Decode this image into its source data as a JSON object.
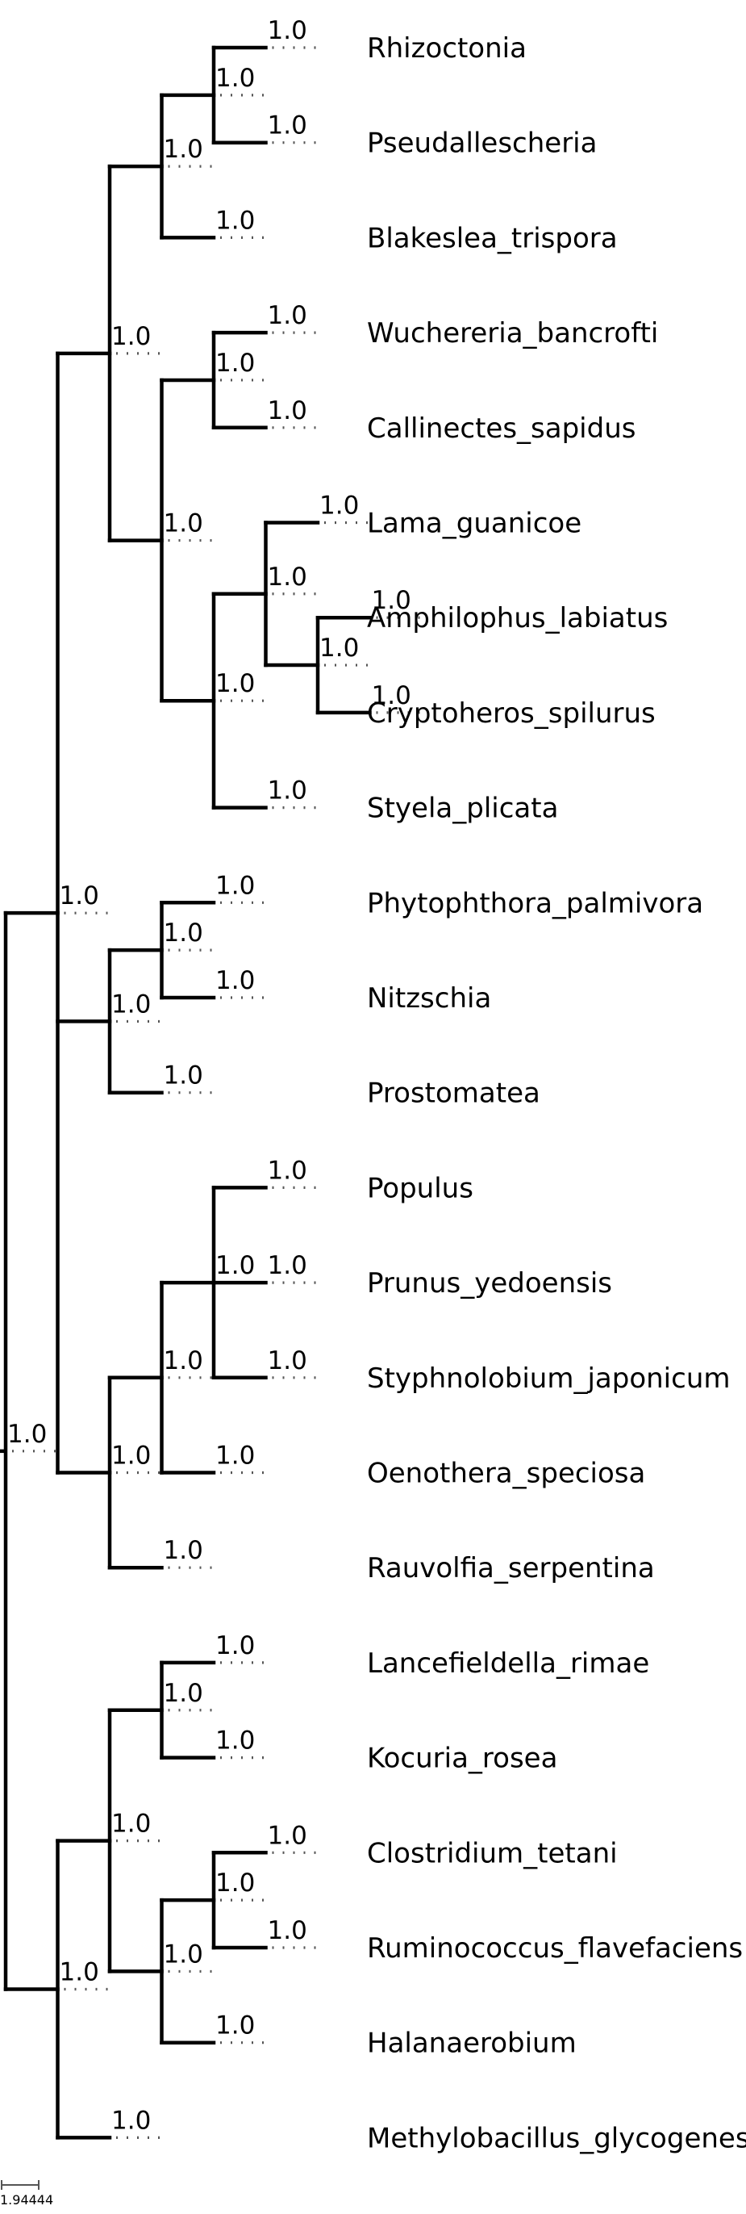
{
  "tree": {
    "support": "1.0",
    "children": [
      {
        "support": "1.0",
        "children": [
          {
            "support": "1.0",
            "children": [
              {
                "support": "1.0",
                "children": [
                  {
                    "support": "1.0",
                    "children": [
                      {
                        "name": "Rhizoctonia",
                        "support": "1.0"
                      },
                      {
                        "name": "Pseudallescheria",
                        "support": "1.0"
                      }
                    ]
                  },
                  {
                    "name": "Blakeslea_trispora",
                    "support": "1.0"
                  }
                ]
              },
              {
                "support": "1.0",
                "children": [
                  {
                    "support": "1.0",
                    "children": [
                      {
                        "name": "Wuchereria_bancrofti",
                        "support": "1.0"
                      },
                      {
                        "name": "Callinectes_sapidus",
                        "support": "1.0"
                      }
                    ]
                  },
                  {
                    "support": "1.0",
                    "children": [
                      {
                        "support": "1.0",
                        "children": [
                          {
                            "name": "Lama_guanicoe",
                            "support": "1.0"
                          },
                          {
                            "support": "1.0",
                            "children": [
                              {
                                "name": "Amphilophus_labiatus",
                                "support": "1.0"
                              },
                              {
                                "name": "Cryptoheros_spilurus",
                                "support": "1.0"
                              }
                            ]
                          }
                        ]
                      },
                      {
                        "name": "Styela_plicata",
                        "support": "1.0"
                      }
                    ]
                  }
                ]
              }
            ]
          },
          {
            "support": "1.0",
            "children": [
              {
                "support": "1.0",
                "children": [
                  {
                    "name": "Phytophthora_palmivora",
                    "support": "1.0"
                  },
                  {
                    "name": "Nitzschia",
                    "support": "1.0"
                  }
                ]
              },
              {
                "name": "Prostomatea",
                "support": "1.0"
              }
            ]
          },
          {
            "support": "1.0",
            "children": [
              {
                "support": "1.0",
                "children": [
                  {
                    "support": "1.0",
                    "children": [
                      {
                        "name": "Populus",
                        "support": "1.0"
                      },
                      {
                        "name": "Prunus_yedoensis",
                        "support": "1.0"
                      },
                      {
                        "name": "Styphnolobium_japonicum",
                        "support": "1.0"
                      }
                    ]
                  },
                  {
                    "name": "Oenothera_speciosa",
                    "support": "1.0"
                  }
                ]
              },
              {
                "name": "Rauvolfia_serpentina",
                "support": "1.0"
              }
            ]
          }
        ]
      },
      {
        "support": "1.0",
        "children": [
          {
            "support": "1.0",
            "children": [
              {
                "support": "1.0",
                "children": [
                  {
                    "name": "Lancefieldella_rimae",
                    "support": "1.0"
                  },
                  {
                    "name": "Kocuria_rosea",
                    "support": "1.0"
                  }
                ]
              },
              {
                "support": "1.0",
                "children": [
                  {
                    "support": "1.0",
                    "children": [
                      {
                        "name": "Clostridium_tetani",
                        "support": "1.0"
                      },
                      {
                        "name": "Ruminococcus_flavefaciens",
                        "support": "1.0"
                      }
                    ]
                  },
                  {
                    "name": "Halanaerobium",
                    "support": "1.0"
                  }
                ]
              }
            ]
          },
          {
            "name": "Methylobacillus_glycogenes",
            "support": "1.0"
          }
        ]
      }
    ]
  },
  "scale_bar": {
    "label": "1.94444"
  },
  "colors": {
    "branch": "#000000",
    "stub": "#555555",
    "stub_accent": "#1f2fd0",
    "text": "#000000"
  }
}
